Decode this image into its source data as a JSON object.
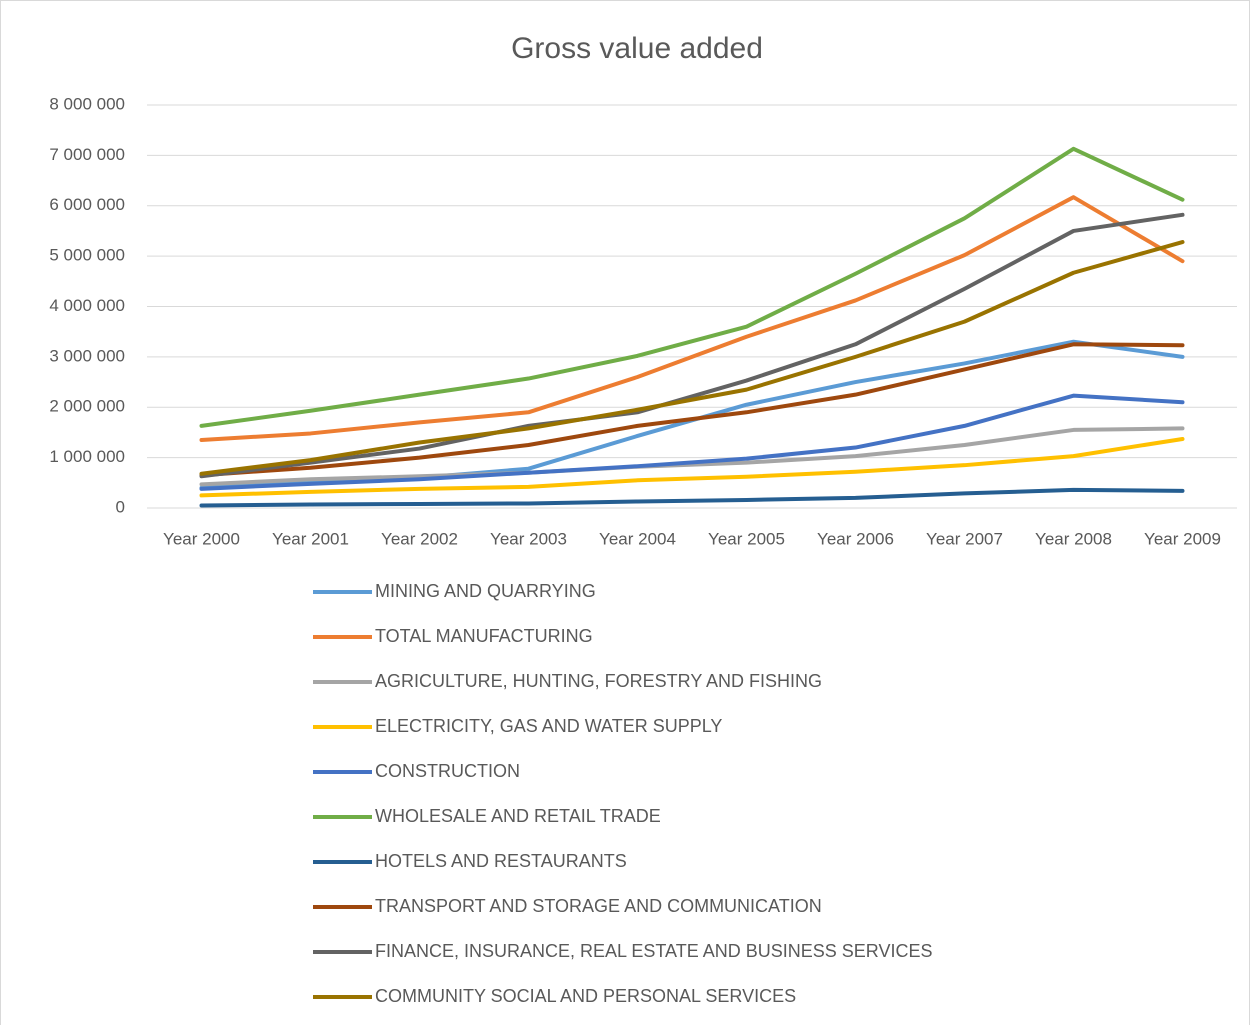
{
  "chart_data": {
    "type": "line",
    "title": "Gross value added",
    "categories": [
      "Year 2000",
      "Year 2001",
      "Year 2002",
      "Year 2003",
      "Year 2004",
      "Year 2005",
      "Year 2006",
      "Year 2007",
      "Year 2008",
      "Year 2009"
    ],
    "series": [
      {
        "name": "MINING AND QUARRYING",
        "color": "#5b9bd5",
        "values": [
          400000,
          500000,
          600000,
          780000,
          1430000,
          2050000,
          2500000,
          2870000,
          3300000,
          3000000
        ]
      },
      {
        "name": "TOTAL MANUFACTURING",
        "color": "#ed7d31",
        "values": [
          1350000,
          1480000,
          1700000,
          1900000,
          2600000,
          3400000,
          4120000,
          5020000,
          6170000,
          4900000
        ]
      },
      {
        "name": "AGRICULTURE, HUNTING, FORESTRY AND FISHING",
        "color": "#a5a5a5",
        "values": [
          470000,
          570000,
          630000,
          700000,
          820000,
          900000,
          1030000,
          1250000,
          1550000,
          1580000
        ]
      },
      {
        "name": "ELECTRICITY, GAS AND WATER SUPPLY",
        "color": "#ffc000",
        "values": [
          250000,
          320000,
          380000,
          420000,
          550000,
          620000,
          720000,
          850000,
          1030000,
          1370000
        ]
      },
      {
        "name": "CONSTRUCTION",
        "color": "#4472c4",
        "values": [
          380000,
          480000,
          570000,
          700000,
          830000,
          980000,
          1200000,
          1630000,
          2230000,
          2100000
        ]
      },
      {
        "name": "WHOLESALE AND RETAIL TRADE",
        "color": "#70ad47",
        "values": [
          1630000,
          1930000,
          2250000,
          2570000,
          3020000,
          3600000,
          4650000,
          5750000,
          7130000,
          6120000
        ]
      },
      {
        "name": "HOTELS AND RESTAURANTS",
        "color": "#255e91",
        "values": [
          50000,
          70000,
          80000,
          90000,
          130000,
          160000,
          200000,
          290000,
          360000,
          340000
        ]
      },
      {
        "name": "TRANSPORT AND STORAGE AND COMMUNICATION",
        "color": "#9e480e",
        "values": [
          650000,
          800000,
          1000000,
          1250000,
          1630000,
          1900000,
          2250000,
          2750000,
          3250000,
          3230000
        ]
      },
      {
        "name": "FINANCE, INSURANCE, REAL ESTATE AND BUSINESS SERVICES",
        "color": "#636363",
        "values": [
          630000,
          900000,
          1180000,
          1630000,
          1900000,
          2530000,
          3250000,
          4350000,
          5500000,
          5820000
        ]
      },
      {
        "name": "COMMUNITY SOCIAL AND PERSONAL SERVICES",
        "color": "#997300",
        "values": [
          680000,
          950000,
          1300000,
          1580000,
          1950000,
          2350000,
          3000000,
          3700000,
          4670000,
          5280000
        ]
      }
    ],
    "ylim": [
      0,
      8000000
    ],
    "yticks": [
      0,
      {
        "value": 1000000,
        "label": "1 000 000"
      },
      {
        "value": 2000000,
        "label": "2 000 000"
      },
      {
        "value": 3000000,
        "label": "3 000 000"
      },
      {
        "value": 4000000,
        "label": "4 000 000"
      },
      {
        "value": 5000000,
        "label": "5 000 000"
      },
      {
        "value": 6000000,
        "label": "6 000 000"
      },
      {
        "value": 7000000,
        "label": "7 000 000"
      },
      {
        "value": 8000000,
        "label": "8 000 000"
      }
    ],
    "grid": true
  }
}
